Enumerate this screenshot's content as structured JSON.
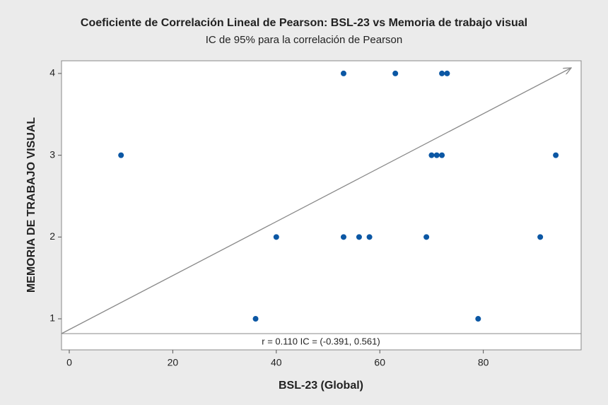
{
  "chart_data": {
    "type": "scatter",
    "title": "Coeficiente de Correlación Lineal de Pearson: BSL-23 vs Memoria de trabajo visual",
    "subtitle": "IC de 95% para la correlación de Pearson",
    "x_label": "BSL-23 (Global)",
    "y_label": "MEMORIA DE TRABAJO VISUAL",
    "annotation": "r = 0.110  IC = (-0.391, 0.561)",
    "color": "#0b57a4",
    "x": [
      10,
      36,
      40,
      53,
      53,
      56,
      58,
      63,
      69,
      70,
      71,
      72,
      72,
      73,
      79,
      91,
      94
    ],
    "values": [
      3,
      1,
      2,
      4,
      2,
      2,
      2,
      4,
      2,
      3,
      3,
      3,
      4,
      4,
      1,
      2,
      3
    ],
    "xlim": [
      -1.5,
      98.9
    ],
    "ylim": [
      0.62,
      4.155
    ],
    "xticks": [
      0,
      20,
      40,
      60,
      80
    ],
    "yticks": [
      1,
      2,
      3,
      4
    ]
  }
}
